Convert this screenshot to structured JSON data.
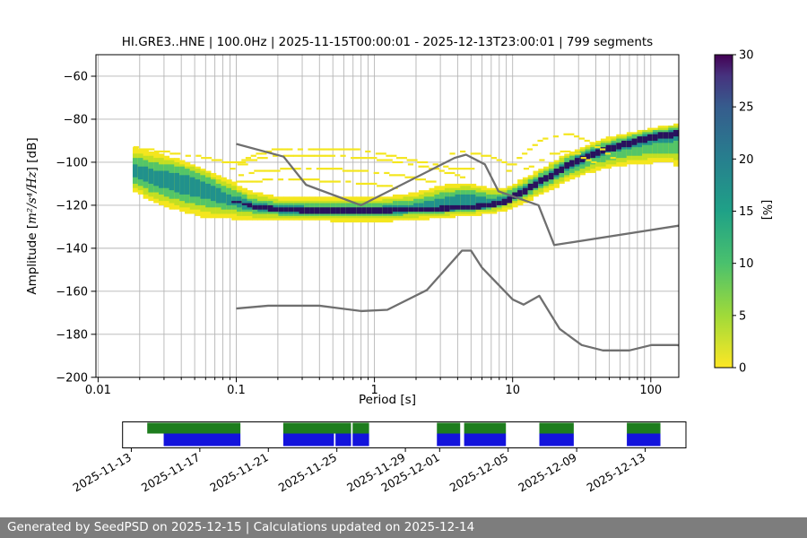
{
  "title": "HI.GRE3..HNE | 100.0Hz | 2025-11-15T00:00:01 - 2025-12-13T23:00:01 | 799 segments",
  "footer": {
    "text": "Generated by SeedPSD on 2025-12-15 | Calculations updated on 2025-12-14"
  },
  "ylabel": {
    "prefix": "Amplitude [",
    "math": "m²/s⁴/Hz",
    "suffix": "] [dB]"
  },
  "chart_data": {
    "type": "heatmap",
    "title": "HI.GRE3..HNE | 100.0Hz | 2025-11-15T00:00:01 - 2025-12-13T23:00:01 | 799 segments",
    "xlabel": "Period [s]",
    "ylabel": "Amplitude [m²/s⁴/Hz] [dB]",
    "ppsd": {
      "x_log_ticks": [
        0.01,
        0.1,
        1,
        10,
        100
      ],
      "x_tick_labels": [
        "0.01",
        "0.1",
        "1",
        "10",
        "100"
      ],
      "x_range": [
        0.0097,
        159
      ],
      "y_ticks": [
        -60,
        -80,
        -100,
        -120,
        -140,
        -160,
        -180,
        -200
      ],
      "y_tick_labels": [
        "−60",
        "−80",
        "−100",
        "−120",
        "−140",
        "−160",
        "−180",
        "−200"
      ],
      "y_range_db": [
        -200,
        -50
      ],
      "grid_color": "#b5b5b5",
      "noise_model_color": "#6f6f6f",
      "noise_models": {
        "NHNM": [
          [
            0.1,
            -91.5
          ],
          [
            0.22,
            -97.4
          ],
          [
            0.32,
            -110.5
          ],
          [
            0.8,
            -120.0
          ],
          [
            3.8,
            -98.0
          ],
          [
            4.6,
            -96.5
          ],
          [
            6.3,
            -101.0
          ],
          [
            7.9,
            -113.5
          ],
          [
            15.4,
            -120.0
          ],
          [
            20.0,
            -138.5
          ],
          [
            159,
            -129.5
          ]
        ],
        "NLNM": [
          [
            0.1,
            -168.0
          ],
          [
            0.17,
            -166.7
          ],
          [
            0.4,
            -166.7
          ],
          [
            0.8,
            -169.2
          ],
          [
            1.24,
            -168.6
          ],
          [
            2.4,
            -159.4
          ],
          [
            4.3,
            -141.1
          ],
          [
            5.0,
            -141.1
          ],
          [
            6.0,
            -149.0
          ],
          [
            10.0,
            -163.8
          ],
          [
            12.0,
            -166.2
          ],
          [
            15.6,
            -162.1
          ],
          [
            21.9,
            -177.5
          ],
          [
            31.6,
            -185.0
          ],
          [
            45.0,
            -187.5
          ],
          [
            70.0,
            -187.5
          ],
          [
            101.0,
            -185.0
          ],
          [
            154.0,
            -185.0
          ],
          [
            159,
            -185.1
          ]
        ]
      },
      "histogram_mode_bands_comment": "control rows: [period_s, mode_dB, yellowTop, greenTop, tealTop, yellowBot, greenBot, tealBot, darkHalf] offsets in dB",
      "bands": [
        [
          0.0178,
          -104,
          11,
          6.5,
          3.5,
          9,
          5.5,
          3,
          0
        ],
        [
          0.025,
          -107,
          12,
          7,
          3.5,
          12,
          7,
          3.5,
          0
        ],
        [
          0.04,
          -110,
          11,
          8,
          4.5,
          13,
          8,
          4.5,
          0
        ],
        [
          0.06,
          -113,
          10,
          6.5,
          3.5,
          13,
          7.5,
          4,
          0
        ],
        [
          0.09,
          -117.5,
          9,
          5,
          2.5,
          9,
          4.5,
          2.5,
          0
        ],
        [
          0.13,
          -120.5,
          7,
          3.5,
          2,
          7,
          3,
          1.8,
          1.1
        ],
        [
          0.2,
          -122,
          6,
          3,
          1.8,
          5.5,
          2.5,
          1.5,
          1.3
        ],
        [
          0.5,
          -122.5,
          6.5,
          3,
          1.7,
          5,
          2.3,
          1.4,
          1.3
        ],
        [
          1.0,
          -122.5,
          6,
          3,
          1.7,
          5.5,
          2.5,
          1.5,
          1.3
        ],
        [
          2.0,
          -122,
          8,
          4.5,
          2.5,
          5,
          2.3,
          1.4,
          1.2
        ],
        [
          3.2,
          -121.5,
          11,
          7.5,
          5,
          4.5,
          2,
          1.3,
          1.1
        ],
        [
          4.7,
          -121,
          11.5,
          8,
          6.5,
          4,
          1.8,
          1.2,
          1.0
        ],
        [
          7.0,
          -120,
          8,
          5,
          3,
          4,
          1.8,
          1.2,
          1.2
        ],
        [
          9.0,
          -118,
          6.5,
          3.8,
          2.2,
          4.5,
          2,
          1.3,
          1.4
        ],
        [
          12,
          -113.5,
          6,
          3.5,
          2,
          5.5,
          2.7,
          1.6,
          1.5
        ],
        [
          17,
          -108,
          6,
          3.5,
          2,
          6.5,
          3.2,
          1.9,
          1.5
        ],
        [
          25,
          -101.5,
          6,
          3.5,
          2,
          7.5,
          4,
          2.1,
          1.5
        ],
        [
          40,
          -95.5,
          5.5,
          3.2,
          1.9,
          8.5,
          5,
          2.3,
          1.5
        ],
        [
          65,
          -91.5,
          5,
          3,
          1.8,
          10,
          6,
          2.5,
          1.5
        ],
        [
          100,
          -88.5,
          4.5,
          2.8,
          1.7,
          12,
          7.5,
          3,
          1.5
        ],
        [
          140,
          -87,
          4.5,
          2.8,
          1.6,
          13.5,
          9,
          3.5,
          1.5
        ],
        [
          159,
          -86.3,
          4.5,
          2.8,
          1.6,
          17,
          10,
          4,
          1.5
        ]
      ],
      "band_colors": {
        "yellow": "#f4e61e",
        "lime": "#c2df23",
        "green": "#54c568",
        "teal": "#21918c",
        "core": "#29115e"
      },
      "wisps": [
        [
          [
            0.09,
            -104
          ],
          [
            0.13,
            -97
          ],
          [
            0.2,
            -93.8
          ],
          [
            0.35,
            -93.5
          ],
          [
            0.6,
            -94
          ],
          [
            0.8,
            -94.5
          ],
          [
            1.1,
            -96
          ],
          [
            1.6,
            -98
          ],
          [
            2.2,
            -100
          ],
          [
            3,
            -102
          ],
          [
            4,
            -103.5
          ],
          [
            5.5,
            -103
          ]
        ],
        [
          [
            0.1,
            -100
          ],
          [
            0.18,
            -97.5
          ],
          [
            0.3,
            -97
          ],
          [
            0.6,
            -97.5
          ],
          [
            1,
            -98.5
          ],
          [
            1.6,
            -100
          ],
          [
            2.5,
            -102.5
          ],
          [
            3.5,
            -105
          ],
          [
            4.5,
            -107
          ]
        ],
        [
          [
            0.095,
            -107
          ],
          [
            0.15,
            -104
          ],
          [
            0.3,
            -103
          ],
          [
            0.6,
            -103.5
          ],
          [
            1,
            -104.5
          ],
          [
            1.5,
            -106
          ],
          [
            2.2,
            -108
          ],
          [
            3,
            -110
          ]
        ],
        [
          [
            0.1,
            -109.5
          ],
          [
            0.2,
            -108
          ],
          [
            0.4,
            -108.5
          ],
          [
            0.7,
            -109.5
          ],
          [
            1,
            -110.5
          ],
          [
            1.5,
            -112
          ]
        ],
        [
          [
            3.5,
            -96
          ],
          [
            4.5,
            -95
          ],
          [
            6,
            -96.5
          ],
          [
            8,
            -99
          ],
          [
            10,
            -101.5
          ]
        ],
        [
          [
            9,
            -106
          ],
          [
            12,
            -96
          ],
          [
            16,
            -90
          ],
          [
            20,
            -87.8
          ],
          [
            25,
            -87
          ],
          [
            30,
            -88
          ],
          [
            36,
            -90
          ],
          [
            42,
            -93
          ],
          [
            48,
            -96
          ],
          [
            55,
            -99
          ]
        ],
        [
          [
            12,
            -104
          ],
          [
            16,
            -99
          ],
          [
            20,
            -96
          ],
          [
            25,
            -95
          ],
          [
            30,
            -96.5
          ],
          [
            36,
            -99
          ],
          [
            42,
            -102
          ]
        ],
        [
          [
            0.018,
            -93
          ],
          [
            0.03,
            -95
          ],
          [
            0.05,
            -97
          ],
          [
            0.08,
            -99.5
          ],
          [
            0.12,
            -101.5
          ]
        ]
      ],
      "colorbar": {
        "label": "[%]",
        "ticks": [
          0,
          5,
          10,
          15,
          20,
          25,
          30
        ],
        "range": [
          0,
          30
        ],
        "stops": [
          {
            "v": 0,
            "color": "#fde725"
          },
          {
            "v": 5,
            "color": "#a0da39"
          },
          {
            "v": 10,
            "color": "#4ac16d"
          },
          {
            "v": 15,
            "color": "#1fa187"
          },
          {
            "v": 20,
            "color": "#277f8e"
          },
          {
            "v": 25,
            "color": "#365c8d"
          },
          {
            "v": 28,
            "color": "#46327e"
          },
          {
            "v": 30,
            "color": "#440154"
          }
        ]
      }
    },
    "availability": {
      "comment": "days measured from 2025-11-13; two stacked rows of coverage segments",
      "day_min": -0.51,
      "day_max": 32.38,
      "ticks": [
        {
          "day": 0,
          "label": "2025-11-13"
        },
        {
          "day": 4,
          "label": "2025-11-17"
        },
        {
          "day": 8,
          "label": "2025-11-21"
        },
        {
          "day": 12,
          "label": "2025-11-25"
        },
        {
          "day": 16,
          "label": "2025-11-29"
        },
        {
          "day": 18,
          "label": "2025-12-01"
        },
        {
          "day": 22,
          "label": "2025-12-05"
        },
        {
          "day": 26,
          "label": "2025-12-09"
        },
        {
          "day": 30,
          "label": "2025-12-13"
        }
      ],
      "green_color": "#1e7d1e",
      "blue_color": "#1313dc",
      "green_segments_days": [
        [
          0.93,
          6.37
        ],
        [
          8.87,
          12.83
        ],
        [
          12.92,
          13.88
        ],
        [
          17.84,
          19.2
        ],
        [
          19.43,
          21.87
        ],
        [
          23.82,
          25.83
        ],
        [
          28.93,
          30.89
        ]
      ],
      "blue_segments_days": [
        [
          1.89,
          6.37
        ],
        [
          8.87,
          11.83
        ],
        [
          11.92,
          12.83
        ],
        [
          12.92,
          13.88
        ],
        [
          17.84,
          19.2
        ],
        [
          19.43,
          21.87
        ],
        [
          23.82,
          25.83
        ],
        [
          28.93,
          30.89
        ]
      ]
    }
  }
}
